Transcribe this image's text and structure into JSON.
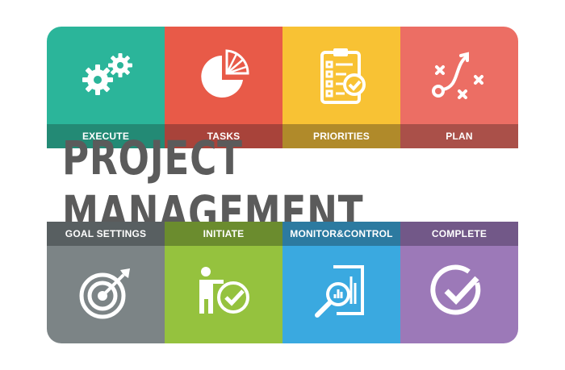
{
  "title": "PROJECT MANAGEMENT",
  "top_tiles": [
    {
      "label": "EXECUTE",
      "icon": "gears-icon",
      "color": "#2bb59a",
      "band": "#238a75"
    },
    {
      "label": "TASKS",
      "icon": "pie-chart-icon",
      "color": "#e85a48",
      "band": "#a8433a"
    },
    {
      "label": "PRIORITIES",
      "icon": "checklist-icon",
      "color": "#f8c234",
      "band": "#b08a2a"
    },
    {
      "label": "PLAN",
      "icon": "strategy-icon",
      "color": "#ec6e64",
      "band": "#aa5049"
    }
  ],
  "bottom_tiles": [
    {
      "label": "GOAL SETTINGS",
      "icon": "target-icon",
      "color": "#7c8486",
      "band": "#585f61"
    },
    {
      "label": "INITIATE",
      "icon": "person-check-icon",
      "color": "#95c23e",
      "band": "#6b8c2e"
    },
    {
      "label": "MONITOR&CONTROL",
      "icon": "report-magnifier-icon",
      "color": "#3aa9e0",
      "band": "#2c7aa0"
    },
    {
      "label": "COMPLETE",
      "icon": "check-circle-icon",
      "color": "#9c79b8",
      "band": "#725888"
    }
  ]
}
